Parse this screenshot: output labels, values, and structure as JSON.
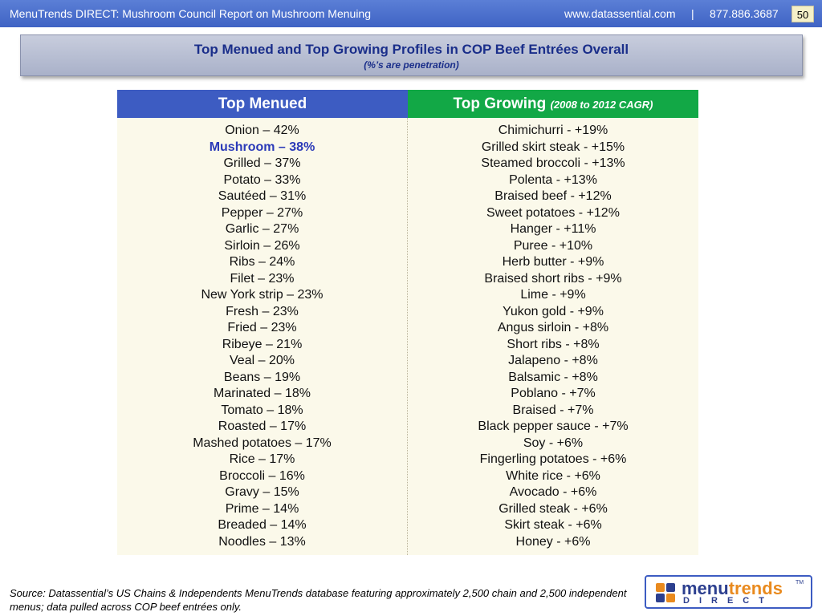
{
  "header": {
    "left_text": "MenuTrends DIRECT: Mushroom Council Report on Mushroom Menuing",
    "right_text": "www.datassential.com     |     877.886.3687",
    "page_number": "50"
  },
  "title": {
    "main": "Top Menued and Top Growing Profiles in COP Beef Entrées Overall",
    "sub": "(%’s are penetration)"
  },
  "table": {
    "left_header": "Top Menued",
    "right_header": "Top Growing",
    "right_header_sub": "(2008 to 2012 CAGR)",
    "left_items": [
      "Onion – 42%",
      "Mushroom – 38%",
      "Grilled – 37%",
      "Potato – 33%",
      "Sautéed – 31%",
      "Pepper – 27%",
      "Garlic – 27%",
      "Sirloin – 26%",
      "Ribs – 24%",
      "Filet – 23%",
      "New York strip – 23%",
      "Fresh – 23%",
      "Fried – 23%",
      "Ribeye – 21%",
      "Veal – 20%",
      "Beans – 19%",
      "Marinated – 18%",
      "Tomato – 18%",
      "Roasted – 17%",
      "Mashed potatoes – 17%",
      "Rice – 17%",
      "Broccoli – 16%",
      "Gravy – 15%",
      "Prime – 14%",
      "Breaded – 14%",
      "Noodles – 13%"
    ],
    "highlight_index": 1,
    "right_items": [
      "Chimichurri - +19%",
      "Grilled skirt steak - +15%",
      "Steamed broccoli - +13%",
      "Polenta - +13%",
      "Braised beef - +12%",
      "Sweet potatoes - +12%",
      "Hanger - +11%",
      "Puree - +10%",
      "Herb butter - +9%",
      "Braised short ribs - +9%",
      "Lime - +9%",
      "Yukon gold - +9%",
      "Angus sirloin - +8%",
      "Short ribs - +8%",
      "Jalapeno - +8%",
      "Balsamic - +8%",
      "Poblano - +7%",
      "Braised - +7%",
      "Black pepper sauce - +7%",
      "Soy - +6%",
      "Fingerling potatoes - +6%",
      "White rice - +6%",
      "Avocado - +6%",
      "Grilled steak - +6%",
      "Skirt steak - +6%",
      "Honey - +6%"
    ]
  },
  "footer": {
    "source": "Source: Datassential’s US Chains & Independents MenuTrends database featuring approximately 2,500 chain and 2,500 independent menus; data pulled across COP beef entrées only.",
    "logo_word_a": "menu",
    "logo_word_b": "trends",
    "logo_word_c": "DIRECT",
    "logo_tm": "TM"
  },
  "colors": {
    "header_blue": "#3f63c4",
    "left_header": "#3d5cc2",
    "right_header": "#12a846",
    "highlight": "#2b3ab8",
    "table_bg": "#fbf9ea"
  }
}
